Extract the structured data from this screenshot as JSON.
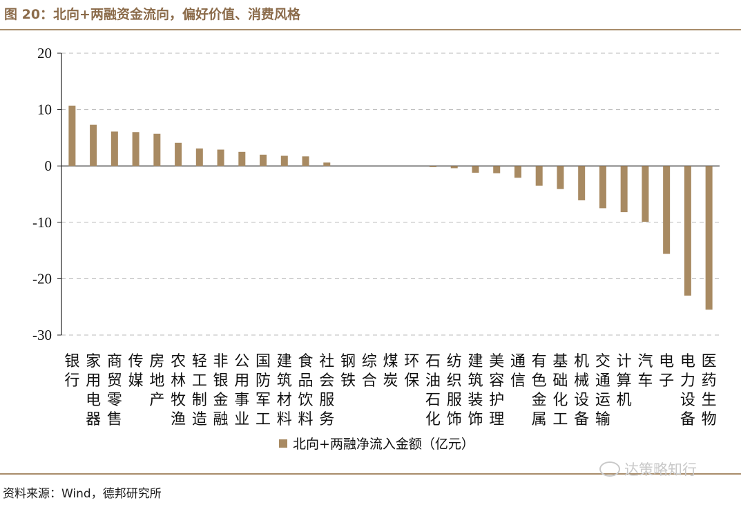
{
  "title": "图 20：北向+两融资金流向，偏好价值、消费风格",
  "source": "资料来源：Wind，德邦研究所",
  "watermark": "达策略知行",
  "colors": {
    "bar": "#a88a62",
    "accent": "#8b6b4a",
    "grid": "#b8b8b8"
  },
  "chart_data": {
    "type": "bar",
    "title": "图 20：北向+两融资金流向，偏好价值、消费风格",
    "xlabel": "",
    "ylabel": "",
    "ylim": [
      -30,
      20
    ],
    "yticks": [
      20,
      10,
      0,
      -10,
      -20,
      -30
    ],
    "grid": true,
    "legend_position": "bottom-center",
    "categories": [
      "银行",
      "家用电器",
      "商贸零售",
      "传媒",
      "房地产",
      "农林牧渔",
      "轻工制造",
      "非银金融",
      "公用事业",
      "国防军工",
      "建筑材料",
      "食品饮料",
      "社会服务",
      "钢铁",
      "综合",
      "煤炭",
      "环保",
      "石油石化",
      "纺织服饰",
      "建筑装饰",
      "美容护理",
      "通信",
      "有色金属",
      "基础化工",
      "机械设备",
      "交通运输",
      "计算机",
      "汽车",
      "电子",
      "电力设备",
      "医药生物"
    ],
    "series": [
      {
        "name": "北向+两融净流入金额（亿元）",
        "values": [
          10.7,
          7.3,
          6.1,
          6.0,
          5.7,
          4.1,
          3.1,
          2.9,
          2.5,
          2.0,
          1.8,
          1.7,
          0.6,
          0.0,
          0.0,
          0.0,
          0.0,
          -0.2,
          -0.4,
          -1.2,
          -1.3,
          -2.1,
          -3.5,
          -4.1,
          -6.1,
          -7.5,
          -8.2,
          -9.9,
          -15.6,
          -23.0,
          -25.5
        ]
      }
    ]
  }
}
